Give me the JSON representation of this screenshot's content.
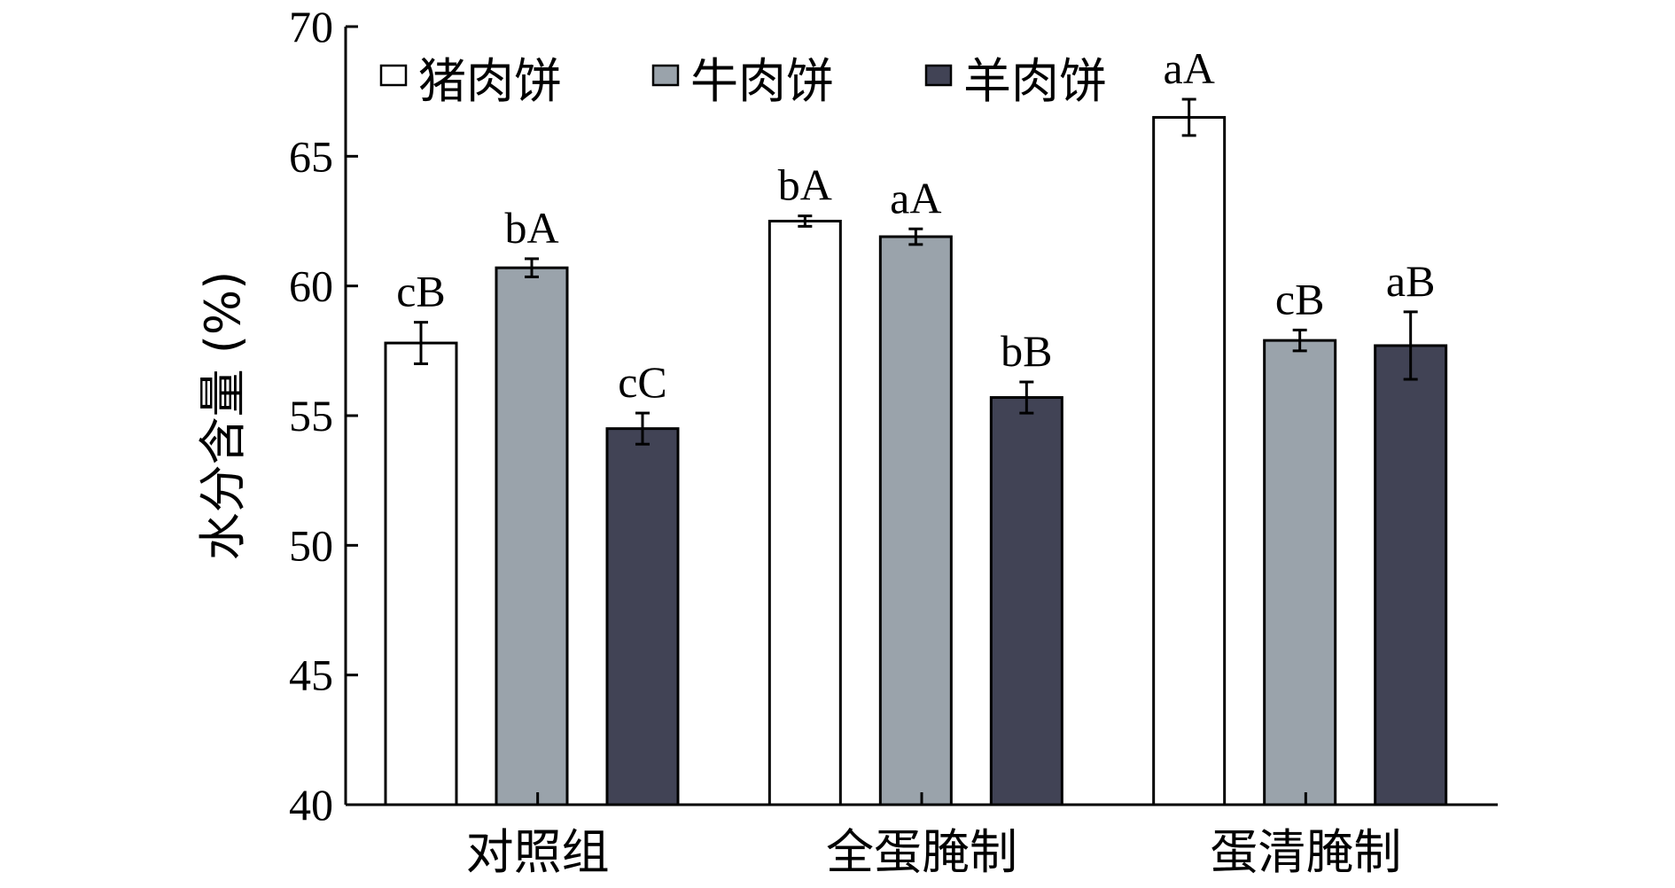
{
  "chart_data": {
    "type": "bar",
    "ylabel": "水分含量 (%)",
    "ylim": [
      40,
      70
    ],
    "yticks": [
      40,
      45,
      50,
      55,
      60,
      65,
      70
    ],
    "categories": [
      "对照组",
      "全蛋腌制",
      "蛋清腌制"
    ],
    "legend_position": "top-left",
    "grid": false,
    "series": [
      {
        "name": "猪肉饼",
        "color": "#ffffff",
        "values": [
          57.8,
          62.5,
          66.5
        ],
        "errors": [
          0.8,
          0.2,
          0.7
        ],
        "labels": [
          "cB",
          "bA",
          "aA"
        ]
      },
      {
        "name": "牛肉饼",
        "color": "#9aa3ab",
        "values": [
          60.7,
          61.9,
          57.9
        ],
        "errors": [
          0.35,
          0.3,
          0.4
        ],
        "labels": [
          "bA",
          "aA",
          "cB"
        ]
      },
      {
        "name": "羊肉饼",
        "color": "#414355",
        "values": [
          54.5,
          55.7,
          57.7
        ],
        "errors": [
          0.6,
          0.6,
          1.3
        ],
        "labels": [
          "cC",
          "bB",
          "aB"
        ]
      }
    ]
  }
}
